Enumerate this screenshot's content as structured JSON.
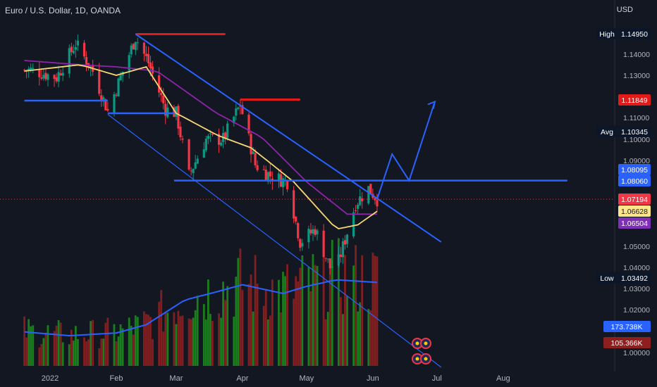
{
  "header": {
    "title": "Euro / U.S. Dollar, 1D, OANDA",
    "currency": "USD"
  },
  "chart_data": {
    "type": "candlestick",
    "symbol": "Euro / U.S. Dollar",
    "interval": "1D",
    "source": "OANDA",
    "y_axis": {
      "ticks": [
        "1.14000",
        "1.13000",
        "1.11000",
        "1.10000",
        "1.09000",
        "1.05000",
        "1.04000",
        "1.03000",
        "1.02000",
        "1.00000"
      ],
      "range": [
        0.996,
        1.155
      ]
    },
    "x_axis": {
      "ticks": [
        "2022",
        "Feb",
        "Mar",
        "Apr",
        "May",
        "Jun",
        "Jul",
        "Aug"
      ]
    },
    "price_path": [
      {
        "x": "2021-12-23",
        "y": 1.1325
      },
      {
        "x": "2022-01-04",
        "y": 1.129
      },
      {
        "x": "2022-01-13",
        "y": 1.145
      },
      {
        "x": "2022-01-21",
        "y": 1.132
      },
      {
        "x": "2022-01-28",
        "y": 1.113
      },
      {
        "x": "2022-02-10",
        "y": 1.148
      },
      {
        "x": "2022-02-16",
        "y": 1.136
      },
      {
        "x": "2022-02-24",
        "y": 1.114
      },
      {
        "x": "2022-03-01",
        "y": 1.112
      },
      {
        "x": "2022-03-07",
        "y": 1.083
      },
      {
        "x": "2022-03-15",
        "y": 1.1
      },
      {
        "x": "2022-03-23",
        "y": 1.1
      },
      {
        "x": "2022-03-31",
        "y": 1.116
      },
      {
        "x": "2022-04-07",
        "y": 1.088
      },
      {
        "x": "2022-04-14",
        "y": 1.083
      },
      {
        "x": "2022-04-22",
        "y": 1.08
      },
      {
        "x": "2022-04-28",
        "y": 1.052
      },
      {
        "x": "2022-05-05",
        "y": 1.058
      },
      {
        "x": "2022-05-12",
        "y": 1.04
      },
      {
        "x": "2022-05-16",
        "y": 1.043
      },
      {
        "x": "2022-05-24",
        "y": 1.07
      },
      {
        "x": "2022-05-30",
        "y": 1.077
      },
      {
        "x": "2022-06-03",
        "y": 1.0719
      }
    ],
    "fast_ma": [
      {
        "x": "2021-12-20",
        "y": 1.132
      },
      {
        "x": "2022-01-15",
        "y": 1.135
      },
      {
        "x": "2022-02-01",
        "y": 1.13
      },
      {
        "x": "2022-02-15",
        "y": 1.134
      },
      {
        "x": "2022-03-01",
        "y": 1.112
      },
      {
        "x": "2022-03-20",
        "y": 1.102
      },
      {
        "x": "2022-04-05",
        "y": 1.096
      },
      {
        "x": "2022-04-25",
        "y": 1.08
      },
      {
        "x": "2022-05-15",
        "y": 1.058
      },
      {
        "x": "2022-05-25",
        "y": 1.06
      },
      {
        "x": "2022-06-03",
        "y": 1.0663
      }
    ],
    "slow_ma": [
      {
        "x": "2021-12-20",
        "y": 1.137
      },
      {
        "x": "2022-01-15",
        "y": 1.135
      },
      {
        "x": "2022-02-01",
        "y": 1.134
      },
      {
        "x": "2022-02-20",
        "y": 1.132
      },
      {
        "x": "2022-03-20",
        "y": 1.112
      },
      {
        "x": "2022-04-10",
        "y": 1.101
      },
      {
        "x": "2022-05-01",
        "y": 1.08
      },
      {
        "x": "2022-05-20",
        "y": 1.065
      },
      {
        "x": "2022-06-03",
        "y": 1.065
      }
    ],
    "volume_ma_trend": [
      {
        "x": "2021-12-20",
        "y": 62
      },
      {
        "x": "2022-01-10",
        "y": 55
      },
      {
        "x": "2022-02-01",
        "y": 60
      },
      {
        "x": "2022-02-15",
        "y": 75
      },
      {
        "x": "2022-03-05",
        "y": 120
      },
      {
        "x": "2022-03-20",
        "y": 135
      },
      {
        "x": "2022-04-01",
        "y": 148
      },
      {
        "x": "2022-04-20",
        "y": 132
      },
      {
        "x": "2022-05-01",
        "y": 145
      },
      {
        "x": "2022-05-15",
        "y": 157
      },
      {
        "x": "2022-06-03",
        "y": 152
      }
    ],
    "drawings": {
      "red_resistance": [
        {
          "from": "2022-02-10",
          "to": "2022-03-24",
          "y": 1.1495
        },
        {
          "from": "2022-03-31",
          "to": "2022-04-28",
          "y": 1.1185
        }
      ],
      "blue_horizontal": [
        {
          "from": "2021-12-20",
          "to": "2022-01-28",
          "y": 1.118
        },
        {
          "from": "2022-01-28",
          "to": "2022-02-28",
          "y": 1.112
        },
        {
          "from": "2022-02-28",
          "to": "2022-08-31",
          "y": 1.0806
        }
      ],
      "channel_top": {
        "from": {
          "x": "2022-02-10",
          "y": 1.1495
        },
        "to": {
          "x": "2022-07-03",
          "y": 1.052
        }
      },
      "channel_bottom": {
        "from": {
          "x": "2022-01-28",
          "y": 1.1115
        },
        "to": {
          "x": "2022-07-03",
          "y": 0.993
        }
      },
      "projection": [
        {
          "x": "2022-06-03",
          "y": 1.0719
        },
        {
          "x": "2022-06-10",
          "y": 1.093
        },
        {
          "x": "2022-06-18",
          "y": 1.0806
        },
        {
          "x": "2022-06-30",
          "y": 1.1175
        }
      ]
    },
    "price_tags": [
      {
        "label": "High",
        "value": "1.14950",
        "bg": "#0c1629",
        "fg": "#ffffff",
        "y": 1.1495
      },
      {
        "value": "1.11849",
        "bg": "#e11a1a",
        "fg": "#ffffff",
        "y": 1.11849
      },
      {
        "label": "Avg",
        "value": "1.10345",
        "bg": "#0c1629",
        "fg": "#ffffff",
        "y": 1.10345
      },
      {
        "value": "1.08095",
        "bg": "#2962ff",
        "fg": "#ffffff",
        "y": 1.08095
      },
      {
        "value": "1.08060",
        "bg": "#2962ff",
        "fg": "#ffffff",
        "y": 1.0806
      },
      {
        "value": "1.07194",
        "bg": "#f23645",
        "fg": "#ffffff",
        "y": 1.07194
      },
      {
        "value": "1.06628",
        "bg": "#ffe58a",
        "fg": "#131722",
        "y": 1.06628
      },
      {
        "value": "1.06504",
        "bg": "#7e2fb5",
        "fg": "#ffffff",
        "y": 1.06504
      },
      {
        "label": "Low",
        "value": "1.03492",
        "bg": "#0c1629",
        "fg": "#ffffff",
        "y": 1.03492
      }
    ],
    "volume_tags": [
      {
        "value": "173.738K",
        "bg": "#2962ff",
        "fg": "#ffffff"
      },
      {
        "value": "105.366K",
        "bg": "#8e1f1f",
        "fg": "#ffffff"
      }
    ],
    "colors": {
      "background": "#131722",
      "up": "#089981",
      "down": "#f23645",
      "fast_ma": "#f7d774",
      "slow_ma": "#8e24aa",
      "drawing_blue": "#2962ff",
      "drawing_red": "#e11a1a",
      "vol_up": "#1b8a1b",
      "vol_down": "#8e1f1f"
    }
  }
}
